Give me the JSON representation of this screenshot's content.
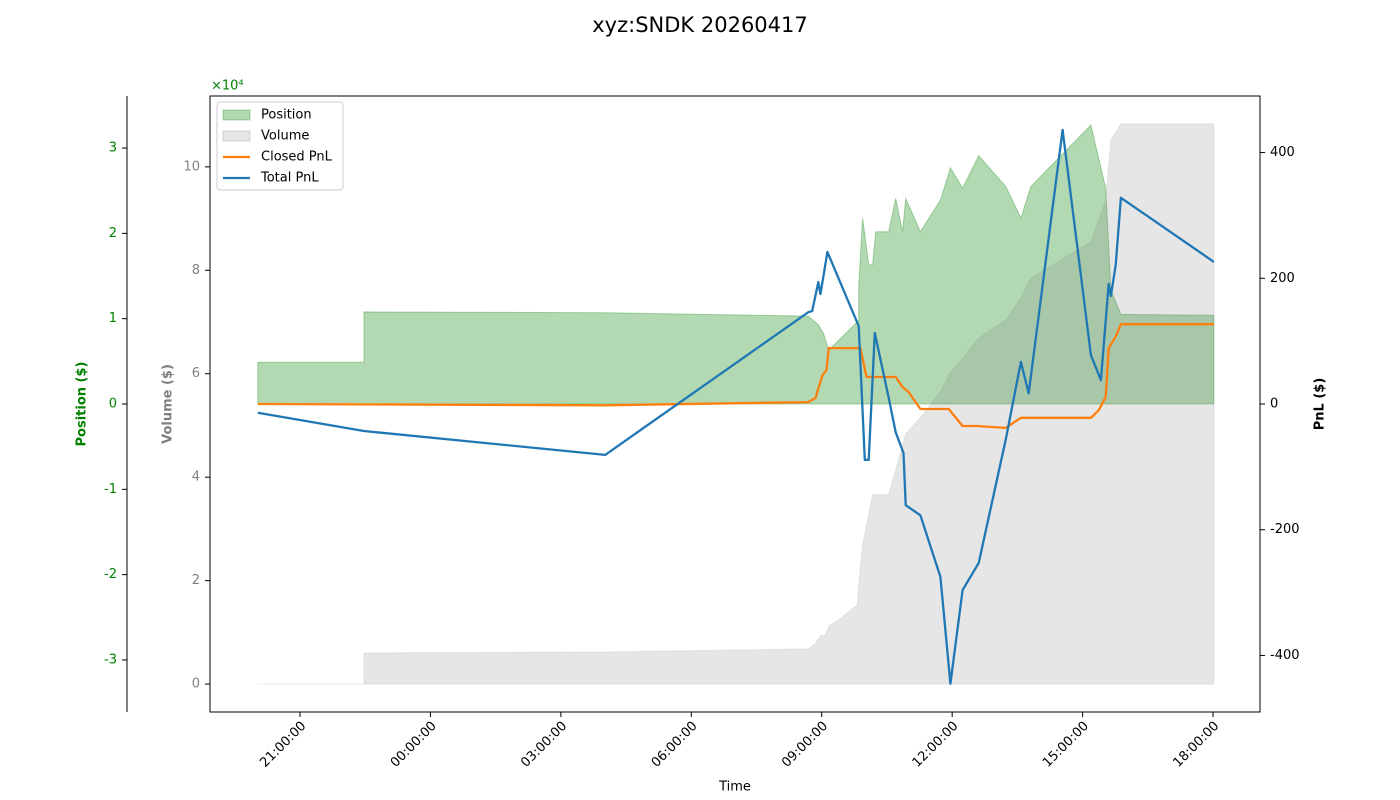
{
  "chart_data": {
    "type": "multi-axis-area-line",
    "title": "xyz:SNDK 20260417",
    "xlabel": "Time",
    "xlim": [
      18.93,
      43.08
    ],
    "xticks": [
      {
        "value": 21,
        "label": "21:00:00"
      },
      {
        "value": 24,
        "label": "00:00:00"
      },
      {
        "value": 27,
        "label": "03:00:00"
      },
      {
        "value": 30,
        "label": "06:00:00"
      },
      {
        "value": 33,
        "label": "09:00:00"
      },
      {
        "value": 36,
        "label": "12:00:00"
      },
      {
        "value": 39,
        "label": "15:00:00"
      },
      {
        "value": 42,
        "label": "18:00:00"
      }
    ],
    "ylabel": "Position ($)",
    "ylim": [
      -3.61,
      3.61
    ],
    "yticks": [
      -3,
      -2,
      -1,
      0,
      1,
      2,
      3
    ],
    "y_offset_label": "×10⁴",
    "y_color": "green",
    "y2label": "Volume ($)",
    "y2lim": [
      -0.54,
      11.37
    ],
    "y2ticks": [
      0,
      2,
      4,
      6,
      8,
      10
    ],
    "y2_color": "gray",
    "y3label": "PnL ($)",
    "y3lim": [
      -490,
      490
    ],
    "y3ticks": [
      -400,
      -200,
      0,
      200,
      400
    ],
    "y3_color": "black",
    "legend": "upper left",
    "series": [
      {
        "name": "Position",
        "kind": "area",
        "axis": "y",
        "color": "green",
        "x": [
          20.03,
          22.47,
          22.47,
          28.02,
          32.69,
          32.92,
          33.04,
          33.16,
          33.85,
          33.85,
          33.94,
          34.08,
          34.17,
          34.24,
          34.54,
          34.7,
          34.86,
          34.93,
          35.27,
          35.73,
          35.96,
          36.24,
          36.61,
          37.23,
          37.58,
          37.81,
          39.19,
          39.53,
          39.65,
          39.88,
          42.02
        ],
        "values": [
          0.49,
          0.49,
          1.08,
          1.07,
          1.03,
          0.93,
          0.83,
          0.63,
          0.98,
          1.39,
          2.18,
          1.63,
          1.63,
          2.02,
          2.02,
          2.41,
          2.02,
          2.41,
          2.02,
          2.39,
          2.77,
          2.53,
          2.91,
          2.55,
          2.18,
          2.55,
          3.27,
          2.53,
          1.34,
          1.05,
          1.04
        ]
      },
      {
        "name": "Volume",
        "kind": "area",
        "axis": "y2",
        "color": "gray",
        "x": [
          20.03,
          22.47,
          22.47,
          28.02,
          32.69,
          32.86,
          32.97,
          33.09,
          33.16,
          33.43,
          33.82,
          33.85,
          33.94,
          34.08,
          34.17,
          34.54,
          34.7,
          34.93,
          35.27,
          35.73,
          35.96,
          36.24,
          36.61,
          37.23,
          37.58,
          37.81,
          39.19,
          39.53,
          39.65,
          39.88,
          42.02
        ],
        "values": [
          0,
          0,
          0.6,
          0.62,
          0.68,
          0.79,
          0.93,
          0.95,
          1.12,
          1.27,
          1.53,
          1.91,
          2.69,
          3.27,
          3.66,
          3.66,
          4.14,
          4.84,
          5.15,
          5.65,
          6.03,
          6.3,
          6.69,
          7.04,
          7.47,
          7.85,
          8.55,
          9.36,
          10.52,
          10.83,
          10.83
        ]
      },
      {
        "name": "Closed PnL",
        "kind": "line",
        "axis": "y3",
        "color": "#ff7f0e",
        "x": [
          20.03,
          28.02,
          32.69,
          32.86,
          32.92,
          33.02,
          33.11,
          33.16,
          33.89,
          34.03,
          34.7,
          34.86,
          35.0,
          35.27,
          35.92,
          36.24,
          36.56,
          37.23,
          37.58,
          39.19,
          39.37,
          39.53,
          39.6,
          39.76,
          39.88,
          42.02
        ],
        "values": [
          0,
          -2,
          3,
          10,
          25,
          46,
          54,
          89,
          89,
          43,
          43,
          27,
          19,
          -8,
          -8,
          -35,
          -35,
          -38,
          -22,
          -22,
          -10,
          11,
          89,
          107,
          127,
          127
        ]
      },
      {
        "name": "Total PnL",
        "kind": "line",
        "axis": "y3",
        "color": "#1f77b4",
        "x": [
          20.03,
          22.47,
          28.02,
          32.69,
          32.78,
          32.92,
          32.97,
          33.04,
          33.13,
          33.85,
          33.99,
          34.08,
          34.22,
          34.54,
          34.7,
          34.88,
          34.93,
          35.27,
          35.73,
          35.96,
          36.24,
          36.61,
          37.23,
          37.58,
          37.76,
          38.54,
          39.19,
          39.42,
          39.6,
          39.65,
          39.76,
          39.88,
          42.02
        ],
        "values": [
          -14,
          -43,
          -81,
          146,
          148,
          194,
          175,
          204,
          242,
          124,
          -89,
          -89,
          113,
          10,
          -45,
          -78,
          -161,
          -177,
          -275,
          -445,
          -296,
          -253,
          -57,
          67,
          17,
          436,
          78,
          38,
          191,
          172,
          221,
          328,
          226
        ]
      }
    ]
  }
}
